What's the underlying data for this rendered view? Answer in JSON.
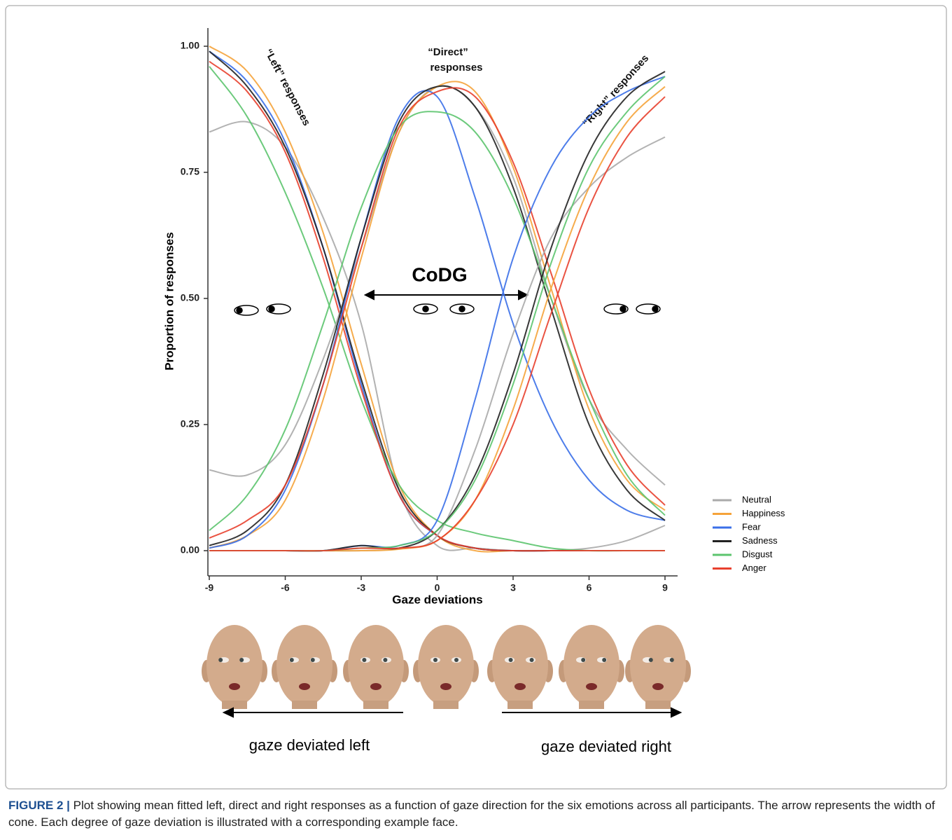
{
  "chart_data": {
    "type": "line",
    "ylabel": "Proportion of responses",
    "xlabel": "Gaze deviations",
    "annotations": {
      "left": "“Left” responses",
      "direct": "“Direct” responses",
      "right": "“Right” responses",
      "codg": "CoDG",
      "gaze_left": "gaze deviated left",
      "gaze_right": "gaze deviated right"
    },
    "caption": {
      "label": "FIGURE 2 |",
      "text": "Plot showing mean fitted left, direct and right responses as a function of gaze direction for the six emotions across all participants. The arrow represents the width of cone. Each degree of gaze deviation is illustrated with a corresponding example face."
    },
    "x": [
      -9,
      -7.5,
      -6,
      -4.5,
      -3,
      -1.5,
      0,
      1.5,
      3,
      4.5,
      6,
      7.5,
      9
    ],
    "xlim": [
      -9,
      9
    ],
    "xticks": [
      -9,
      -6,
      -3,
      0,
      3,
      6,
      9
    ],
    "ylim": [
      0,
      1
    ],
    "yticks": [
      {
        "value": 0,
        "label": "0.00"
      },
      {
        "value": 0.25,
        "label": "0.25"
      },
      {
        "value": 0.5,
        "label": "0.50"
      },
      {
        "value": 0.75,
        "label": "0.75"
      },
      {
        "value": 1,
        "label": "1.00"
      }
    ],
    "series": [
      {
        "name": "Neutral",
        "color": "#aaaaaa",
        "left": [
          0.83,
          0.85,
          0.8,
          0.66,
          0.45,
          0.12,
          0.01,
          0.005,
          0,
          0,
          0.005,
          0.02,
          0.05
        ],
        "direct": [
          0.16,
          0.15,
          0.21,
          0.38,
          0.6,
          0.83,
          0.92,
          0.88,
          0.74,
          0.5,
          0.3,
          0.2,
          0.13
        ],
        "right": [
          0,
          0,
          0,
          0,
          0,
          0.005,
          0.03,
          0.2,
          0.43,
          0.62,
          0.72,
          0.78,
          0.82
        ]
      },
      {
        "name": "Happiness",
        "color": "#f5a33a",
        "left": [
          1.0,
          0.95,
          0.83,
          0.63,
          0.37,
          0.13,
          0.03,
          0,
          0,
          0,
          0,
          0,
          0
        ],
        "direct": [
          0.005,
          0.03,
          0.1,
          0.3,
          0.58,
          0.83,
          0.92,
          0.91,
          0.76,
          0.52,
          0.28,
          0.14,
          0.08
        ],
        "right": [
          0,
          0,
          0,
          0,
          0,
          0.003,
          0.02,
          0.1,
          0.28,
          0.52,
          0.72,
          0.85,
          0.92
        ]
      },
      {
        "name": "Fear",
        "color": "#3a6fe8",
        "left": [
          0.99,
          0.93,
          0.81,
          0.6,
          0.33,
          0.11,
          0.03,
          0.005,
          0,
          0,
          0,
          0,
          0
        ],
        "direct": [
          0.005,
          0.03,
          0.12,
          0.33,
          0.62,
          0.86,
          0.9,
          0.7,
          0.45,
          0.26,
          0.14,
          0.08,
          0.06
        ],
        "right": [
          0,
          0,
          0,
          0,
          0.01,
          0.01,
          0.06,
          0.3,
          0.58,
          0.76,
          0.86,
          0.91,
          0.94
        ]
      },
      {
        "name": "Sadness",
        "color": "#222222",
        "left": [
          0.99,
          0.92,
          0.8,
          0.6,
          0.34,
          0.12,
          0.03,
          0.005,
          0,
          0,
          0,
          0,
          0
        ],
        "direct": [
          0.01,
          0.04,
          0.13,
          0.35,
          0.62,
          0.85,
          0.92,
          0.88,
          0.72,
          0.48,
          0.25,
          0.12,
          0.06
        ],
        "right": [
          0,
          0,
          0,
          0,
          0.01,
          0.005,
          0.04,
          0.15,
          0.35,
          0.6,
          0.79,
          0.9,
          0.95
        ]
      },
      {
        "name": "Disgust",
        "color": "#5cc46e",
        "left": [
          0.96,
          0.86,
          0.71,
          0.52,
          0.3,
          0.13,
          0.06,
          0.035,
          0.02,
          0.005,
          0,
          0,
          0
        ],
        "direct": [
          0.04,
          0.11,
          0.24,
          0.45,
          0.68,
          0.84,
          0.87,
          0.83,
          0.7,
          0.5,
          0.3,
          0.15,
          0.07
        ],
        "right": [
          0,
          0,
          0,
          0,
          0.005,
          0.01,
          0.04,
          0.14,
          0.33,
          0.57,
          0.76,
          0.87,
          0.94
        ]
      },
      {
        "name": "Anger",
        "color": "#e8402e",
        "left": [
          0.97,
          0.91,
          0.79,
          0.58,
          0.32,
          0.11,
          0.03,
          0.005,
          0,
          0,
          0,
          0,
          0
        ],
        "direct": [
          0.025,
          0.06,
          0.13,
          0.33,
          0.6,
          0.84,
          0.91,
          0.9,
          0.77,
          0.55,
          0.32,
          0.17,
          0.09
        ],
        "right": [
          0,
          0,
          0,
          0,
          0.005,
          0.005,
          0.02,
          0.1,
          0.25,
          0.47,
          0.68,
          0.82,
          0.9
        ]
      }
    ]
  }
}
